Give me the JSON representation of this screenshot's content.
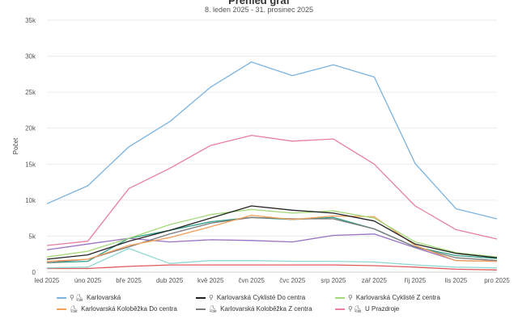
{
  "header": {
    "title": "Přehled graf",
    "subtitle": "8. leden 2025 - 31. prosinec 2025"
  },
  "chart_data": {
    "type": "line",
    "ylabel": "Počet",
    "ylim": [
      0,
      35000
    ],
    "yticks": [
      "0",
      "5k",
      "10k",
      "15k",
      "20k",
      "25k",
      "30k",
      "35k"
    ],
    "ytick_values": [
      0,
      5000,
      10000,
      15000,
      20000,
      25000,
      30000,
      35000
    ],
    "categories": [
      "led 2025",
      "úno 2025",
      "bře 2025",
      "dub 2025",
      "kvě 2025",
      "čvn 2025",
      "čvc 2025",
      "srp 2025",
      "zář 2025",
      "říj 2025",
      "lis 2025",
      "pro 2025"
    ],
    "grid": true,
    "legend_position": "bottom",
    "series": [
      {
        "name": "Karlovarská",
        "color": "#7ab3e0",
        "icons": [
          "bicycle-icon",
          "scooter-icon"
        ],
        "values": [
          9500,
          12000,
          17400,
          20900,
          25700,
          29200,
          27300,
          28800,
          27100,
          15100,
          8800,
          7400
        ]
      },
      {
        "name": "Karlovarská Cyklisté Do centra",
        "color": "#222222",
        "icons": [
          "bicycle-icon"
        ],
        "values": [
          1800,
          2400,
          4300,
          5800,
          7500,
          9200,
          8600,
          8200,
          7100,
          3900,
          2600,
          2000
        ]
      },
      {
        "name": "Karlovarská Cyklisté Z centra",
        "color": "#a3d977",
        "icons": [
          "bicycle-icon"
        ],
        "values": [
          2100,
          2900,
          4700,
          6600,
          8000,
          8700,
          8200,
          8500,
          7500,
          4200,
          2700,
          2100
        ]
      },
      {
        "name": "Karlovarská Koloběžka Do centra",
        "color": "#f5a05a",
        "icons": [
          "scooter-icon"
        ],
        "values": [
          1500,
          1800,
          3700,
          4800,
          6300,
          7900,
          7300,
          7800,
          7700,
          3700,
          1600,
          1500
        ]
      },
      {
        "name": "Karlovarská Koloběžka Z centra",
        "color": "#7a7a7a",
        "icons": [
          "scooter-icon"
        ],
        "values": [
          1300,
          1800,
          3500,
          5300,
          6800,
          7600,
          7400,
          7400,
          6000,
          3500,
          2000,
          1600
        ]
      },
      {
        "name": "U Prazdroje",
        "color": "#e87ea1",
        "icons": [
          "bicycle-icon",
          "scooter-icon"
        ],
        "values": [
          3700,
          4300,
          11600,
          14400,
          17600,
          19000,
          18200,
          18500,
          15000,
          9200,
          5900,
          4600
        ]
      },
      {
        "name": "",
        "color": "#2f9e86",
        "values": [
          1300,
          1500,
          4700,
          5800,
          7000,
          7600,
          7300,
          7600,
          6000,
          3500,
          2300,
          1900
        ]
      },
      {
        "name": "",
        "color": "#9a72c2",
        "values": [
          3100,
          3900,
          4700,
          4200,
          4500,
          4400,
          4200,
          5100,
          5300,
          3400,
          1600,
          1500
        ]
      },
      {
        "name": "",
        "color": "#8fd8d2",
        "values": [
          600,
          700,
          3300,
          1200,
          1600,
          1600,
          1500,
          1500,
          1400,
          1000,
          700,
          600
        ]
      },
      {
        "name": "",
        "color": "#e05a5a",
        "values": [
          500,
          500,
          800,
          1000,
          1000,
          1000,
          1000,
          1000,
          900,
          700,
          400,
          300
        ]
      }
    ]
  },
  "legend": {
    "items": [
      {
        "label": "Karlovarská",
        "color": "#7ab3e0",
        "icons": [
          "bicycle-icon",
          "scooter-icon"
        ]
      },
      {
        "label": "Karlovarská Cyklisté Do centra",
        "color": "#222222",
        "icons": [
          "bicycle-icon"
        ]
      },
      {
        "label": "Karlovarská Cyklisté Z centra",
        "color": "#a3d977",
        "icons": [
          "bicycle-icon"
        ]
      },
      {
        "label": "Karlovarská Koloběžka Do centra",
        "color": "#f5a05a",
        "icons": [
          "scooter-icon"
        ]
      },
      {
        "label": "Karlovarská Koloběžka Z centra",
        "color": "#7a7a7a",
        "icons": [
          "scooter-icon"
        ]
      },
      {
        "label": "U Prazdroje",
        "color": "#e87ea1",
        "icons": [
          "bicycle-icon",
          "scooter-icon"
        ]
      }
    ]
  }
}
